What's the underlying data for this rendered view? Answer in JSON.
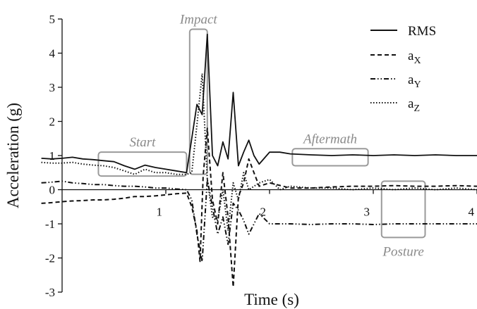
{
  "chart_data": {
    "type": "line",
    "title": "",
    "xlabel": "Time (s)",
    "ylabel": "Acceleration (g)",
    "xlim": [
      0,
      4
    ],
    "ylim": [
      -3,
      5
    ],
    "xticks": [
      1,
      2,
      3,
      4
    ],
    "yticks": [
      -3,
      -2,
      -1,
      0,
      1,
      2,
      3,
      4,
      5
    ],
    "grid": false,
    "legend_position": "top-right",
    "legend": [
      {
        "label": "RMS",
        "style": "solid"
      },
      {
        "label": "aX",
        "base": "a",
        "sub": "X",
        "style": "dashed"
      },
      {
        "label": "aY",
        "base": "a",
        "sub": "Y",
        "style": "dashdotdot"
      },
      {
        "label": "aZ",
        "base": "a",
        "sub": "Z",
        "style": "dotted"
      }
    ],
    "series": [
      {
        "name": "RMS",
        "style": "solid",
        "x": [
          -0.2,
          -0.1,
          0,
          0.1,
          0.2,
          0.3,
          0.4,
          0.5,
          0.6,
          0.7,
          0.8,
          0.9,
          1.0,
          1.1,
          1.2,
          1.3,
          1.35,
          1.4,
          1.45,
          1.5,
          1.55,
          1.6,
          1.65,
          1.7,
          1.75,
          1.8,
          1.85,
          1.9,
          2.0,
          2.1,
          2.2,
          2.4,
          2.6,
          2.8,
          3.0,
          3.2,
          3.4,
          3.6,
          3.8,
          4.0
        ],
        "y": [
          0.92,
          0.9,
          0.92,
          0.95,
          0.9,
          0.88,
          0.85,
          0.82,
          0.7,
          0.6,
          0.72,
          0.65,
          0.6,
          0.55,
          0.5,
          2.5,
          2.2,
          4.55,
          1.0,
          0.7,
          1.4,
          0.9,
          2.85,
          0.7,
          1.1,
          1.45,
          1.0,
          0.75,
          1.1,
          1.1,
          1.05,
          1.02,
          1.0,
          1.02,
          1.0,
          1.02,
          1.0,
          1.02,
          1.0,
          1.0
        ]
      },
      {
        "name": "aX",
        "style": "dashed",
        "x": [
          -0.2,
          -0.1,
          0,
          0.1,
          0.2,
          0.3,
          0.4,
          0.5,
          0.6,
          0.7,
          0.8,
          0.9,
          1.0,
          1.1,
          1.2,
          1.25,
          1.3,
          1.33,
          1.36,
          1.4,
          1.45,
          1.5,
          1.55,
          1.6,
          1.65,
          1.7,
          1.75,
          1.8,
          1.85,
          1.9,
          2.0,
          2.2,
          2.4,
          2.6,
          2.8,
          3.0,
          3.2,
          3.4,
          3.6,
          3.8,
          4.0
        ],
        "y": [
          -0.4,
          -0.38,
          -0.35,
          -0.33,
          -0.32,
          -0.3,
          -0.3,
          -0.28,
          -0.25,
          -0.2,
          -0.2,
          -0.18,
          -0.15,
          -0.12,
          -0.1,
          -0.5,
          -1.2,
          -2.1,
          0.4,
          1.8,
          -0.3,
          -1.0,
          0.5,
          -0.8,
          -2.85,
          -0.2,
          0.2,
          0.9,
          0.5,
          0.1,
          0.2,
          0.05,
          0.05,
          0.08,
          0.1,
          0.1,
          0.12,
          0.1,
          0.1,
          0.12,
          0.1
        ]
      },
      {
        "name": "aY",
        "style": "dashdotdot",
        "x": [
          -0.2,
          -0.1,
          0,
          0.1,
          0.2,
          0.3,
          0.4,
          0.5,
          0.6,
          0.7,
          0.8,
          0.9,
          1.0,
          1.1,
          1.2,
          1.25,
          1.3,
          1.35,
          1.4,
          1.45,
          1.5,
          1.55,
          1.6,
          1.65,
          1.7,
          1.75,
          1.8,
          1.9,
          2.0,
          2.2,
          2.4,
          2.6,
          2.8,
          3.0,
          3.2,
          3.4,
          3.6,
          3.8,
          4.0
        ],
        "y": [
          0.2,
          0.22,
          0.25,
          0.2,
          0.18,
          0.15,
          0.15,
          0.12,
          0.1,
          0.1,
          0.08,
          0.05,
          0.05,
          0.02,
          0.0,
          -0.3,
          -1.3,
          -2.1,
          0.3,
          -0.5,
          -1.3,
          -0.8,
          -1.6,
          -0.4,
          -0.6,
          -0.9,
          -1.3,
          -0.7,
          -1.0,
          -1.0,
          -1.02,
          -1.0,
          -1.0,
          -1.02,
          -1.0,
          -1.0,
          -1.0,
          -1.0,
          -1.0
        ]
      },
      {
        "name": "aZ",
        "style": "dotted",
        "x": [
          -0.2,
          -0.1,
          0,
          0.1,
          0.2,
          0.3,
          0.4,
          0.5,
          0.6,
          0.7,
          0.8,
          0.9,
          1.0,
          1.1,
          1.2,
          1.25,
          1.3,
          1.35,
          1.4,
          1.45,
          1.5,
          1.55,
          1.6,
          1.65,
          1.7,
          1.75,
          1.8,
          1.9,
          2.0,
          2.1,
          2.2,
          2.4,
          2.6,
          2.8,
          3.0,
          3.2,
          3.4,
          3.6,
          3.8,
          4.0
        ],
        "y": [
          0.8,
          0.78,
          0.78,
          0.8,
          0.75,
          0.72,
          0.7,
          0.65,
          0.55,
          0.45,
          0.6,
          0.5,
          0.5,
          0.45,
          0.45,
          0.5,
          1.9,
          3.4,
          0.3,
          -0.8,
          -0.9,
          0.0,
          -1.2,
          0.2,
          -0.3,
          0.5,
          0.0,
          0.2,
          0.3,
          0.0,
          0.1,
          0.05,
          0.05,
          0.0,
          0.05,
          0.0,
          0.05,
          0.0,
          0.05,
          0.0
        ]
      }
    ],
    "annotations": [
      {
        "text": "Start",
        "x0": 0.35,
        "x1": 1.2,
        "y0": 0.4,
        "y1": 1.1
      },
      {
        "text": "Impact",
        "x0": 1.23,
        "x1": 1.4,
        "y0": 0.45,
        "y1": 4.7
      },
      {
        "text": "Aftermath",
        "x0": 2.22,
        "x1": 2.95,
        "y0": 0.7,
        "y1": 1.2
      },
      {
        "text": "Posture",
        "x0": 3.08,
        "x1": 3.5,
        "y0": -1.4,
        "y1": 0.25
      }
    ]
  }
}
